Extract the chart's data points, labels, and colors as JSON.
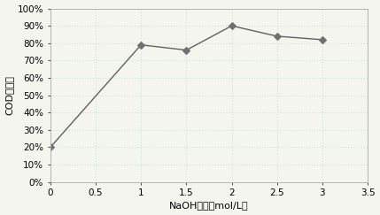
{
  "x": [
    0,
    1,
    1.5,
    2,
    2.5,
    3
  ],
  "y": [
    0.2,
    0.79,
    0.76,
    0.9,
    0.84,
    0.82
  ],
  "xlabel": "NaOH浓度（mol/L）",
  "ylabel": "COD去除率",
  "xlim": [
    0,
    3.5
  ],
  "ylim": [
    0,
    1.0
  ],
  "xticks": [
    0,
    0.5,
    1.0,
    1.5,
    2.0,
    2.5,
    3.0,
    3.5
  ],
  "yticks": [
    0,
    0.1,
    0.2,
    0.3,
    0.4,
    0.5,
    0.6,
    0.7,
    0.8,
    0.9,
    1.0
  ],
  "line_color": "#606060",
  "marker": "D",
  "marker_size": 4,
  "marker_color": "#707070",
  "plot_bg_color": "#f5f5f0",
  "fig_bg_color": "#f5f5f0",
  "grid_color": "#c8e8c8",
  "grid_style": ":",
  "font_size_label": 8,
  "font_size_tick": 7.5
}
